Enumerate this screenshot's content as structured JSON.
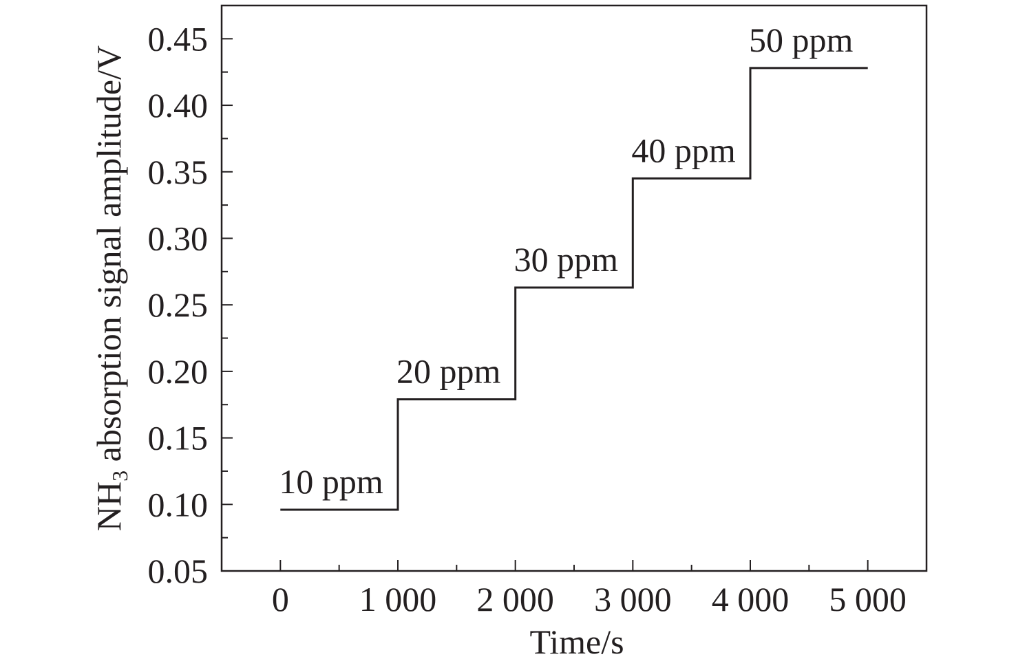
{
  "chart_data": {
    "type": "line",
    "title": "",
    "xlabel": "Time/s",
    "ylabel_main": "NH",
    "ylabel_sub": "3",
    "ylabel_rest": " absorption signal amplitude/V",
    "xlim": [
      -500,
      5500
    ],
    "ylim": [
      0.05,
      0.475
    ],
    "xticks": [
      0,
      1000,
      2000,
      3000,
      4000,
      5000
    ],
    "xtick_labels": [
      "0",
      "1 000",
      "2 000",
      "3 000",
      "4 000",
      "5 000"
    ],
    "x_minor_ticks": [
      500,
      1500,
      2500,
      3500,
      4500
    ],
    "yticks": [
      0.05,
      0.1,
      0.15,
      0.2,
      0.25,
      0.3,
      0.35,
      0.4,
      0.45
    ],
    "ytick_labels": [
      "0.05",
      "0.10",
      "0.15",
      "0.20",
      "0.25",
      "0.30",
      "0.35",
      "0.40",
      "0.45"
    ],
    "y_minor_ticks": [
      0.075,
      0.125,
      0.175,
      0.225,
      0.275,
      0.325,
      0.375,
      0.425
    ],
    "grid": false,
    "series": [
      {
        "x": [
          0,
          1000,
          1000,
          2000,
          2000,
          3000,
          3000,
          4000,
          4000,
          5000
        ],
        "y": [
          0.096,
          0.096,
          0.179,
          0.179,
          0.263,
          0.263,
          0.345,
          0.345,
          0.428,
          0.428
        ],
        "color": "#231f20"
      }
    ],
    "annotations": [
      {
        "text": "10 ppm",
        "x": 0,
        "y": 0.096
      },
      {
        "text": "20 ppm",
        "x": 1000,
        "y": 0.179
      },
      {
        "text": "30 ppm",
        "x": 2000,
        "y": 0.263
      },
      {
        "text": "40 ppm",
        "x": 3000,
        "y": 0.345
      },
      {
        "text": "50 ppm",
        "x": 4000,
        "y": 0.428
      }
    ]
  }
}
